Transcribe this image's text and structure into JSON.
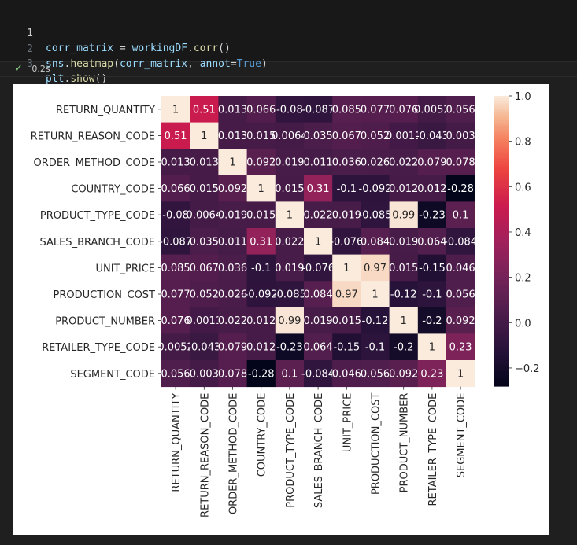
{
  "code": {
    "lines": [
      {
        "num": "1",
        "tokens": [
          {
            "t": "corr_matrix",
            "c": "var"
          },
          {
            "t": " = ",
            "c": "op"
          },
          {
            "t": "workingDF",
            "c": "var"
          },
          {
            "t": ".",
            "c": "punc"
          },
          {
            "t": "corr",
            "c": "fn"
          },
          {
            "t": "()",
            "c": "punc"
          }
        ]
      },
      {
        "num": "2",
        "tokens": [
          {
            "t": "sns",
            "c": "var"
          },
          {
            "t": ".",
            "c": "punc"
          },
          {
            "t": "heatmap",
            "c": "fn"
          },
          {
            "t": "(",
            "c": "punc"
          },
          {
            "t": "corr_matrix",
            "c": "var"
          },
          {
            "t": ", ",
            "c": "punc"
          },
          {
            "t": "annot",
            "c": "var"
          },
          {
            "t": "=",
            "c": "op"
          },
          {
            "t": "True",
            "c": "kw"
          },
          {
            "t": ")",
            "c": "punc"
          }
        ]
      },
      {
        "num": "3",
        "tokens": [
          {
            "t": "plt",
            "c": "var"
          },
          {
            "t": ".",
            "c": "punc"
          },
          {
            "t": "show",
            "c": "fn"
          },
          {
            "t": "()",
            "c": "punc"
          }
        ]
      }
    ]
  },
  "status": {
    "icon": "check-icon",
    "time": "0.2s"
  },
  "chart_data": {
    "type": "heatmap",
    "labels": [
      "RETURN_QUANTITY",
      "RETURN_REASON_CODE",
      "ORDER_METHOD_CODE",
      "COUNTRY_CODE",
      "PRODUCT_TYPE_CODE",
      "SALES_BRANCH_CODE",
      "UNIT_PRICE",
      "PRODUCTION_COST",
      "PRODUCT_NUMBER",
      "RETAILER_TYPE_CODE",
      "SEGMENT_CODE"
    ],
    "values": [
      [
        1,
        0.51,
        0.013,
        0.066,
        -0.08,
        -0.087,
        0.085,
        0.077,
        0.076,
        0.0052,
        0.056
      ],
      [
        0.51,
        1,
        0.013,
        0.015,
        0.0064,
        0.035,
        0.067,
        0.052,
        0.0011,
        -0.043,
        0.003
      ],
      [
        0.013,
        0.013,
        1,
        0.092,
        0.019,
        0.011,
        0.036,
        0.026,
        0.022,
        0.079,
        0.078
      ],
      [
        0.066,
        0.015,
        0.092,
        1,
        0.015,
        0.31,
        -0.1,
        -0.092,
        0.012,
        0.012,
        -0.28
      ],
      [
        -0.08,
        0.0064,
        0.019,
        0.015,
        1,
        0.022,
        0.019,
        -0.085,
        0.99,
        -0.23,
        0.1
      ],
      [
        -0.087,
        0.035,
        0.011,
        0.31,
        0.022,
        1,
        -0.076,
        0.084,
        0.019,
        0.064,
        -0.084
      ],
      [
        0.085,
        0.067,
        0.036,
        -0.1,
        0.019,
        -0.076,
        1,
        0.97,
        0.015,
        -0.15,
        0.046
      ],
      [
        0.077,
        0.052,
        0.026,
        -0.092,
        -0.085,
        0.084,
        0.97,
        1,
        -0.12,
        -0.1,
        0.056
      ],
      [
        0.076,
        0.0011,
        0.022,
        0.012,
        0.99,
        0.019,
        0.015,
        -0.12,
        1,
        -0.2,
        0.092
      ],
      [
        0.0052,
        -0.043,
        0.079,
        0.012,
        -0.23,
        0.064,
        -0.15,
        -0.1,
        -0.2,
        1,
        0.23
      ],
      [
        0.056,
        0.003,
        0.078,
        -0.28,
        0.1,
        -0.084,
        0.046,
        0.056,
        0.092,
        0.23,
        1
      ]
    ],
    "annotations": [
      [
        "1",
        "0.51",
        "0.013",
        "0.066",
        "-0.08",
        "-0.087",
        "0.085",
        "0.077",
        "0.076",
        "0.0052",
        "0.056"
      ],
      [
        "0.51",
        "1",
        "0.013",
        "0.015",
        "0.0064",
        "0.035",
        "0.067",
        "0.052",
        "0.0011",
        "-0.043",
        "0.003"
      ],
      [
        "0.013",
        "0.013",
        "1",
        "0.092",
        "0.019",
        "0.011",
        "0.036",
        "0.026",
        "0.022",
        "0.079",
        "0.078"
      ],
      [
        "0.066",
        "0.015",
        "0.092",
        "1",
        "0.015",
        "0.31",
        "-0.1",
        "-0.092",
        "0.012",
        "0.012",
        "-0.28"
      ],
      [
        "-0.08",
        "0.0064",
        "0.019",
        "0.015",
        "1",
        "0.022",
        "0.019",
        "-0.085",
        "0.99",
        "-0.23",
        "0.1"
      ],
      [
        "-0.087",
        "0.035",
        "0.011",
        "0.31",
        "0.022",
        "1",
        "-0.076",
        "0.084",
        "0.019",
        "0.064",
        "-0.084"
      ],
      [
        "0.085",
        "0.067",
        "0.036",
        "-0.1",
        "0.019",
        "-0.076",
        "1",
        "0.97",
        "0.015",
        "-0.15",
        "0.046"
      ],
      [
        "0.077",
        "0.052",
        "0.026",
        "-0.092",
        "-0.085",
        "0.084",
        "0.97",
        "1",
        "-0.12",
        "-0.1",
        "0.056"
      ],
      [
        "0.076",
        "0.0011",
        "0.022",
        "0.012",
        "0.99",
        "0.019",
        "0.015",
        "-0.12",
        "1",
        "-0.2",
        "0.092"
      ],
      [
        "0.0052",
        "-0.043",
        "0.079",
        "0.012",
        "-0.23",
        "0.064",
        "-0.15",
        "-0.1",
        "-0.2",
        "1",
        "0.23"
      ],
      [
        "0.056",
        "0.003",
        "0.078",
        "-0.28",
        "0.1",
        "-0.084",
        "0.046",
        "0.056",
        "0.092",
        "0.23",
        "1"
      ]
    ],
    "colorbar": {
      "ticks": [
        1.0,
        0.8,
        0.6,
        0.4,
        0.2,
        0.0,
        -0.2
      ],
      "tick_labels": [
        "1.0",
        "0.8",
        "0.6",
        "0.4",
        "0.2",
        "0.0",
        "−0.2"
      ],
      "vmin": -0.28,
      "vmax": 1.0,
      "colormap": "rocket"
    }
  }
}
